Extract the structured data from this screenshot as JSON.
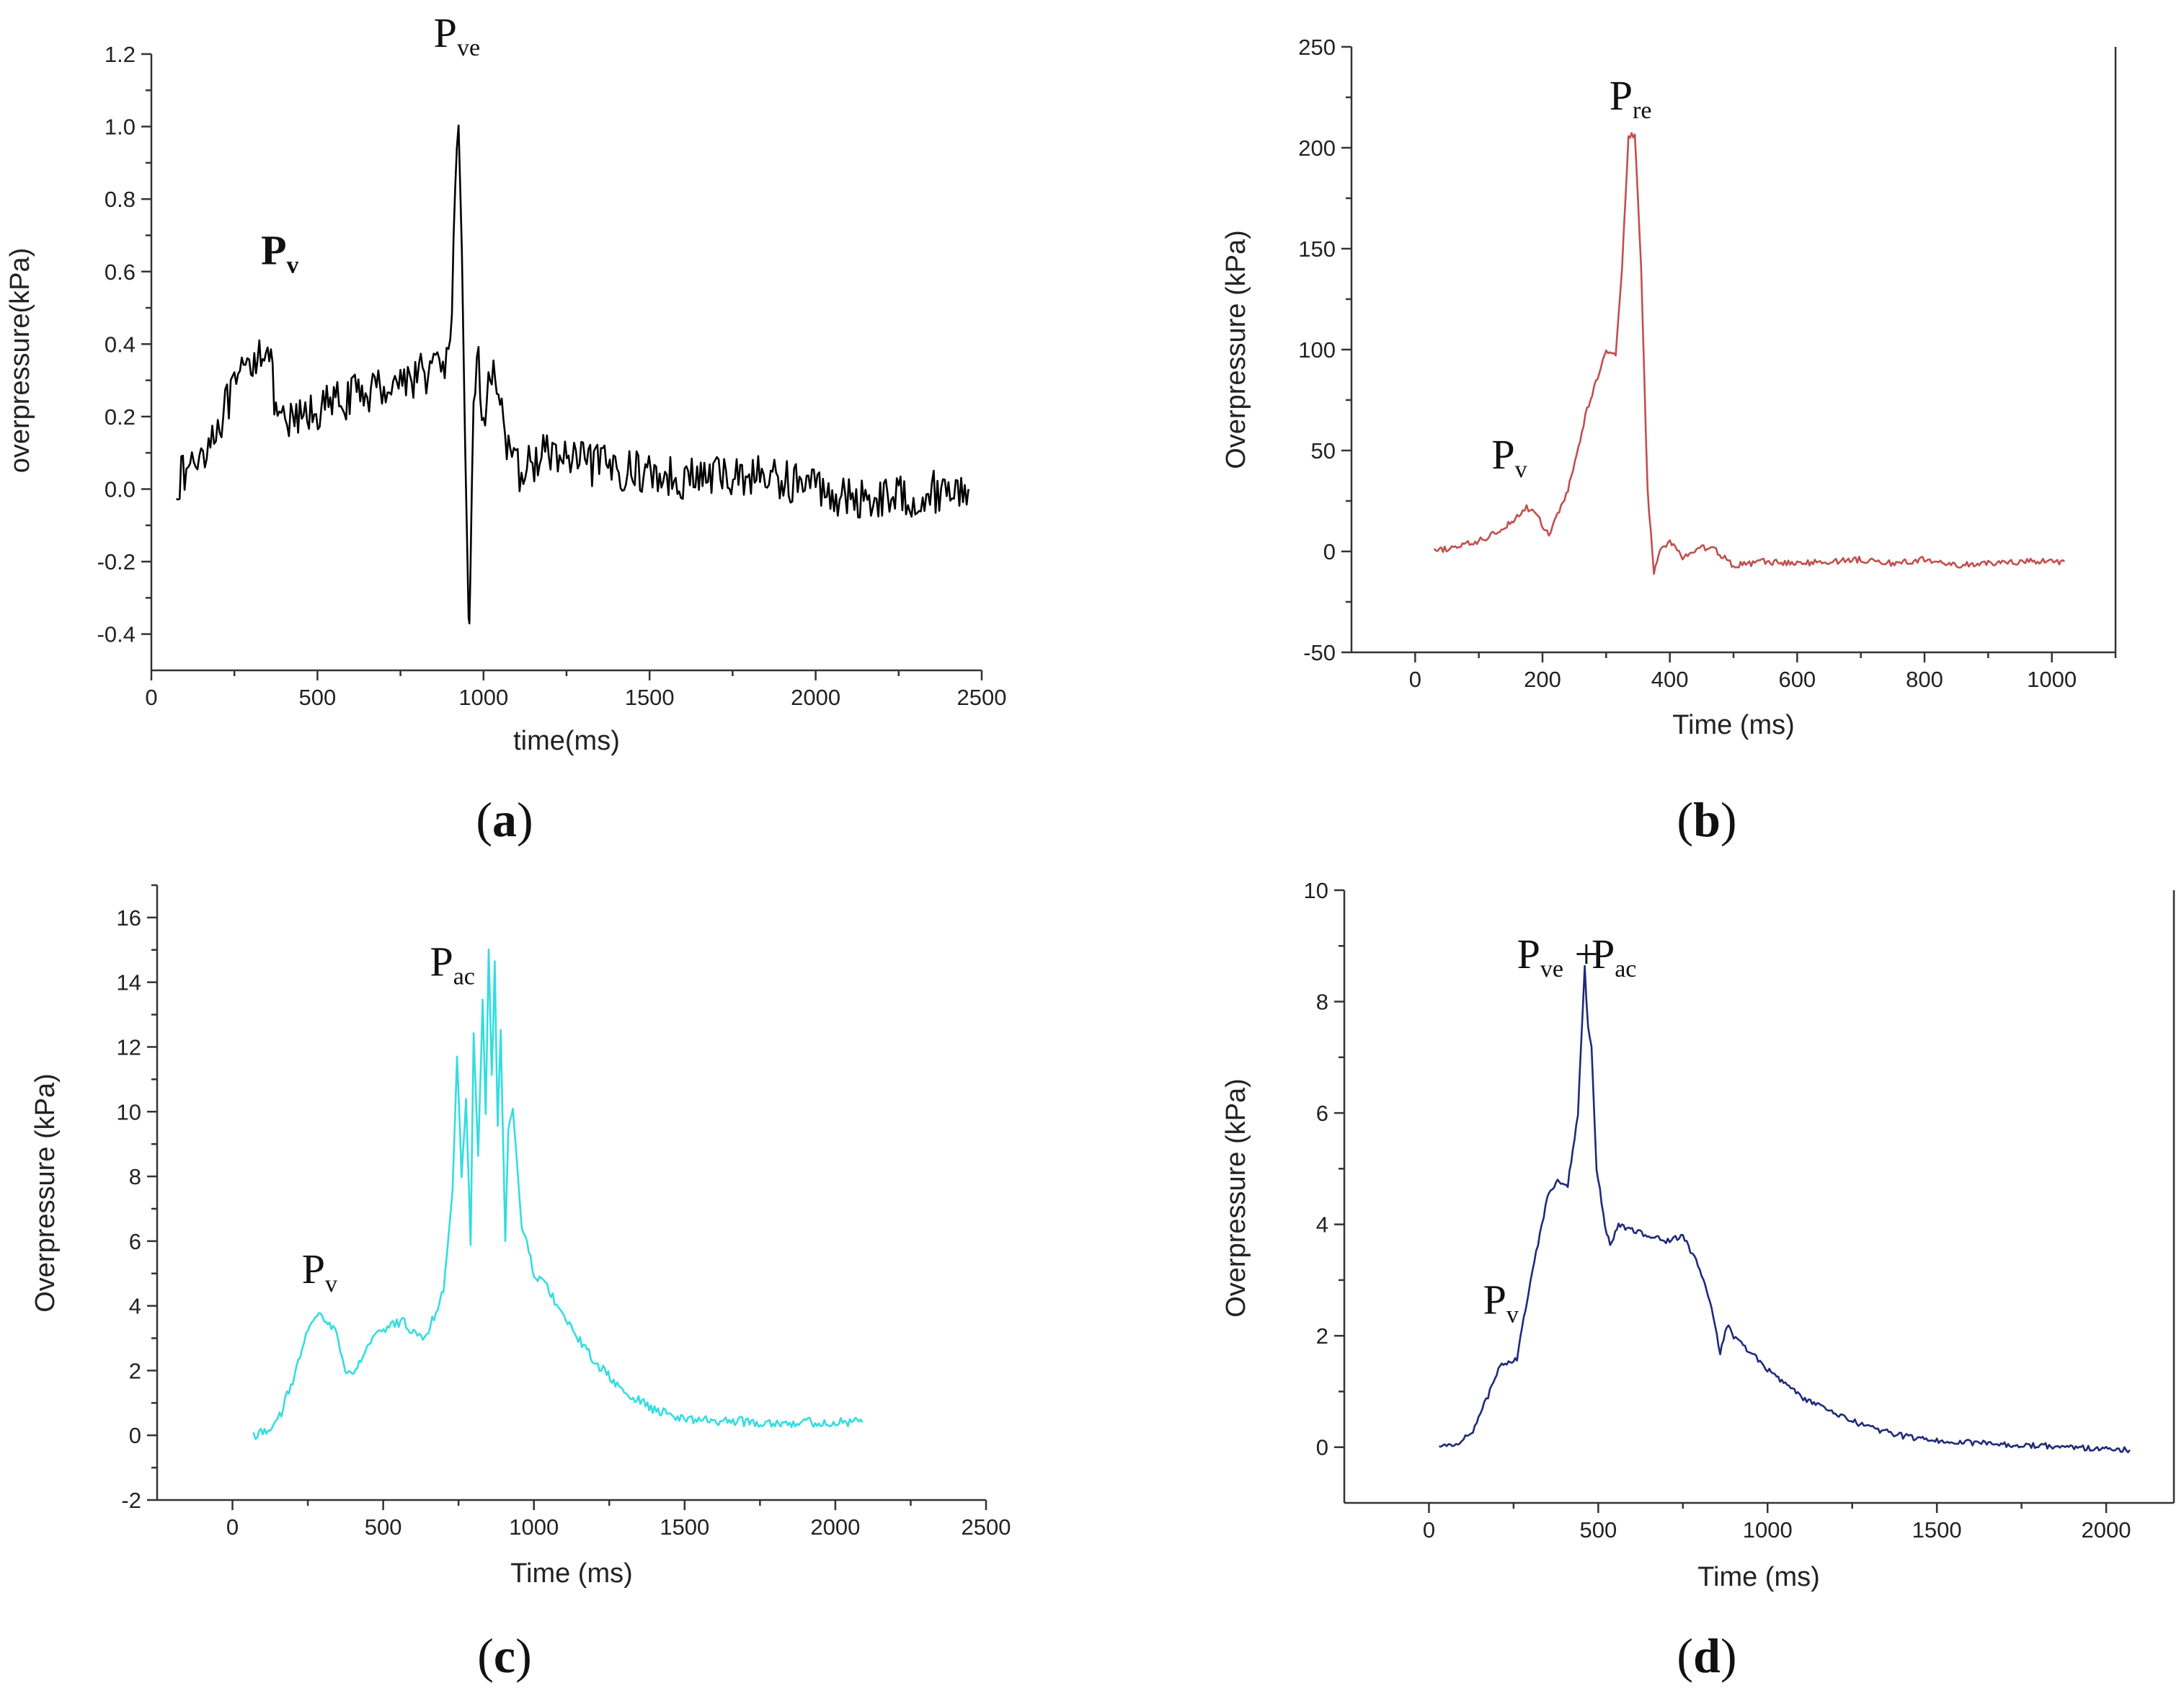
{
  "chart_data": [
    {
      "id": "a",
      "type": "line",
      "panel_label": "a",
      "xlabel": "time(ms)",
      "ylabel": "overpressure(kPa)",
      "xlim": [
        0,
        2500
      ],
      "ylim": [
        -0.5,
        1.2
      ],
      "xticks": [
        0,
        500,
        1000,
        1500,
        2000,
        2500
      ],
      "xtick_labels": [
        "0",
        "500",
        "1000",
        "1500",
        "2000",
        "2500"
      ],
      "yticks": [
        -0.4,
        -0.2,
        0.0,
        0.2,
        0.4,
        0.6,
        0.8,
        1.0,
        1.2
      ],
      "ytick_labels": [
        "-0.4",
        "-0.2",
        "0.0",
        "0.2",
        "0.4",
        "0.6",
        "0.8",
        "1.0",
        "1.2"
      ],
      "box": false,
      "color": "#000000",
      "series": [
        {
          "name": "overpressure",
          "noise": 0.06,
          "x": [
            75,
            100,
            150,
            200,
            250,
            300,
            330,
            345,
            360,
            380,
            420,
            480,
            560,
            650,
            750,
            850,
            900,
            915,
            925,
            935,
            945,
            955,
            960,
            970,
            985,
            1000,
            1020,
            1035,
            1050,
            1080,
            1120,
            1180,
            1300,
            1450,
            1600,
            1800,
            2000,
            2100,
            2200,
            2300,
            2400,
            2460
          ],
          "y": [
            0.02,
            0.04,
            0.1,
            0.18,
            0.27,
            0.35,
            0.39,
            0.41,
            0.33,
            0.17,
            0.18,
            0.21,
            0.24,
            0.27,
            0.3,
            0.33,
            0.37,
            0.8,
            0.97,
            0.6,
            0.1,
            -0.33,
            -0.3,
            0.28,
            0.34,
            0.18,
            0.3,
            0.35,
            0.25,
            0.06,
            0.05,
            0.1,
            0.07,
            0.05,
            0.03,
            0.04,
            0.01,
            -0.03,
            -0.02,
            -0.02,
            0.0,
            0.0
          ]
        }
      ],
      "annotations": [
        {
          "main": "P",
          "sub": "v",
          "x": 330,
          "y": 0.62,
          "bold": true
        },
        {
          "main": "P",
          "sub": "ve",
          "x": 850,
          "y": 1.22,
          "bold": false
        }
      ]
    },
    {
      "id": "b",
      "type": "line",
      "panel_label": "b",
      "xlabel": "Time (ms)",
      "ylabel": "Overpressure (kPa)",
      "xlim": [
        -100,
        1100
      ],
      "ylim": [
        -50,
        250
      ],
      "xticks": [
        0,
        200,
        400,
        600,
        800,
        1000
      ],
      "xtick_labels": [
        "0",
        "200",
        "400",
        "600",
        "800",
        "1000"
      ],
      "yticks": [
        -50,
        0,
        50,
        100,
        150,
        200,
        250
      ],
      "ytick_labels": [
        "-50",
        "0",
        "50",
        "100",
        "150",
        "200",
        "250"
      ],
      "box": true,
      "color": "#c0504d",
      "series": [
        {
          "name": "overpressure",
          "noise": 1.5,
          "x": [
            30,
            60,
            100,
            130,
            160,
            175,
            190,
            210,
            240,
            270,
            300,
            315,
            325,
            335,
            345,
            355,
            365,
            375,
            385,
            400,
            420,
            450,
            470,
            500,
            550,
            600,
            650,
            700,
            750,
            800,
            850,
            900,
            950,
            1000,
            1020
          ],
          "y": [
            0,
            2,
            5,
            10,
            17,
            22,
            18,
            8,
            30,
            70,
            100,
            98,
            140,
            205,
            207,
            140,
            30,
            -10,
            0,
            5,
            -3,
            2,
            1,
            -7,
            -5,
            -6,
            -5,
            -4,
            -6,
            -4,
            -7,
            -6,
            -5,
            -5,
            -5
          ]
        }
      ],
      "annotations": [
        {
          "main": "P",
          "sub": "re",
          "x": 305,
          "y": 219,
          "bold": false
        },
        {
          "main": "P",
          "sub": "v",
          "x": 120,
          "y": 41,
          "bold": false
        }
      ]
    },
    {
      "id": "c",
      "type": "line",
      "panel_label": "c",
      "xlabel": "Time (ms)",
      "ylabel": "Overpressure (kPa)",
      "xlim": [
        -250,
        2500
      ],
      "ylim": [
        -2,
        17
      ],
      "xticks": [
        0,
        500,
        1000,
        1500,
        2000,
        2500
      ],
      "xtick_labels": [
        "0",
        "500",
        "1000",
        "1500",
        "2000",
        "2500"
      ],
      "yticks": [
        -2,
        0,
        2,
        4,
        6,
        8,
        10,
        12,
        14,
        16
      ],
      "ytick_labels": [
        "-2",
        "0",
        "2",
        "4",
        "6",
        "8",
        "10",
        "12",
        "14",
        "16"
      ],
      "box": false,
      "color": "#33dde0",
      "series": [
        {
          "name": "overpressure",
          "noise": 0.15,
          "x": [
            70,
            100,
            150,
            200,
            250,
            280,
            310,
            340,
            380,
            420,
            470,
            520,
            570,
            620,
            650,
            700,
            730,
            745,
            760,
            775,
            790,
            800,
            815,
            830,
            840,
            850,
            860,
            870,
            880,
            890,
            905,
            915,
            930,
            960,
            1000,
            1050,
            1100,
            1200,
            1300,
            1400,
            1500,
            1600,
            1800,
            2000,
            2090
          ],
          "y": [
            0.0,
            0.1,
            0.4,
            1.7,
            3.2,
            3.7,
            3.6,
            3.3,
            1.8,
            2.2,
            3.0,
            3.4,
            3.5,
            3.0,
            3.2,
            4.5,
            7.5,
            11.6,
            8.0,
            10.3,
            6.0,
            12.5,
            8.5,
            13.5,
            10.0,
            15.0,
            11.0,
            14.5,
            9.5,
            12.5,
            6.0,
            9.5,
            10.0,
            6.5,
            5.0,
            4.5,
            3.6,
            2.3,
            1.3,
            0.8,
            0.5,
            0.45,
            0.4,
            0.4,
            0.4
          ]
        }
      ],
      "annotations": [
        {
          "main": "P",
          "sub": "ac",
          "x": 655,
          "y": 14.2,
          "bold": false
        },
        {
          "main": "P",
          "sub": "v",
          "x": 230,
          "y": 4.7,
          "bold": false
        }
      ]
    },
    {
      "id": "d",
      "type": "line",
      "panel_label": "d",
      "xlabel": "Time (ms)",
      "ylabel": "Overpressure (kPa)",
      "xlim": [
        -250,
        2200
      ],
      "ylim": [
        -1,
        10
      ],
      "xticks": [
        0,
        500,
        1000,
        1500,
        2000
      ],
      "xtick_labels": [
        "0",
        "500",
        "1000",
        "1500",
        "2000"
      ],
      "yticks": [
        0,
        2,
        4,
        6,
        8,
        10
      ],
      "ytick_labels": [
        "0",
        "2",
        "4",
        "6",
        "8",
        "10"
      ],
      "box": true,
      "color": "#1f2a7a",
      "series": [
        {
          "name": "overpressure",
          "noise": 0.05,
          "x": [
            30,
            80,
            130,
            180,
            210,
            230,
            260,
            300,
            350,
            380,
            410,
            440,
            460,
            470,
            480,
            495,
            520,
            535,
            560,
            600,
            650,
            700,
            750,
            800,
            830,
            860,
            880,
            900,
            950,
            1000,
            1100,
            1200,
            1300,
            1400,
            1500,
            1600,
            1700,
            1800,
            1900,
            2000,
            2070
          ],
          "y": [
            0.0,
            0.05,
            0.3,
            1.0,
            1.5,
            1.5,
            1.6,
            3.0,
            4.5,
            4.8,
            4.7,
            6.0,
            8.6,
            7.5,
            7.2,
            5.0,
            4.0,
            3.6,
            4.0,
            3.9,
            3.8,
            3.7,
            3.8,
            3.2,
            2.6,
            1.7,
            2.2,
            2.0,
            1.7,
            1.4,
            0.9,
            0.6,
            0.35,
            0.2,
            0.12,
            0.08,
            0.05,
            0.03,
            0.0,
            -0.03,
            -0.05
          ]
        }
      ],
      "annotations": [
        {
          "main": "P",
          "sub": "ve",
          "x": 260,
          "y": 8.6,
          "bold": false
        },
        {
          "main": "+",
          "sub": "",
          "x": 430,
          "y": 8.6,
          "bold": false
        },
        {
          "main": "P",
          "sub": "ac",
          "x": 480,
          "y": 8.6,
          "bold": false
        },
        {
          "main": "P",
          "sub": "v",
          "x": 160,
          "y": 2.4,
          "bold": false
        }
      ]
    }
  ]
}
